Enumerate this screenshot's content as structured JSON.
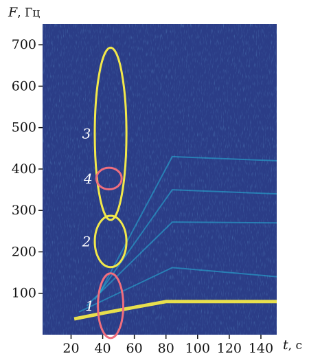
{
  "chart_data": {
    "type": "heatmap",
    "title": "",
    "ylabel": {
      "symbol": "F",
      "unit": "Гц"
    },
    "xlabel": {
      "symbol": "t",
      "unit": "с"
    },
    "xlim": [
      2,
      150
    ],
    "ylim": [
      0,
      750
    ],
    "x_ticks": [
      20,
      40,
      60,
      80,
      100,
      120,
      140
    ],
    "y_ticks": [
      100,
      200,
      300,
      400,
      500,
      600,
      700
    ],
    "colormap": {
      "low": "#2b3d87",
      "mid": "#26b5d8",
      "high": "#f2e84a"
    },
    "regions": [
      {
        "label": "1",
        "color": "#ef6e7e",
        "t_center": 45,
        "f_center": 70,
        "t_halfwidth": 8,
        "f_halfheight": 78
      },
      {
        "label": "2",
        "color": "#f2e84a",
        "t_center": 45,
        "f_center": 225,
        "t_halfwidth": 10,
        "f_halfheight": 62
      },
      {
        "label": "3",
        "color": "#f2e84a",
        "t_center": 45,
        "f_center": 485,
        "t_halfwidth": 10,
        "f_halfheight": 208
      },
      {
        "label": "4",
        "color": "#ef6e7e",
        "t_center": 44,
        "f_center": 377,
        "t_halfwidth": 8,
        "f_halfheight": 26
      }
    ],
    "features": [
      {
        "name": "fundamental",
        "points": [
          [
            22,
            38
          ],
          [
            40,
            52
          ],
          [
            60,
            66
          ],
          [
            80,
            80
          ],
          [
            100,
            80
          ],
          [
            150,
            80
          ]
        ]
      },
      {
        "name": "harmonic-2",
        "points": [
          [
            25,
            55
          ],
          [
            84,
            162
          ],
          [
            150,
            140
          ]
        ]
      },
      {
        "name": "harmonic-3",
        "points": [
          [
            30,
            70
          ],
          [
            84,
            272
          ],
          [
            150,
            270
          ]
        ]
      },
      {
        "name": "harmonic-4",
        "points": [
          [
            35,
            85
          ],
          [
            84,
            350
          ],
          [
            150,
            340
          ]
        ]
      },
      {
        "name": "harmonic-5",
        "points": [
          [
            38,
            100
          ],
          [
            84,
            430
          ],
          [
            150,
            420
          ]
        ]
      }
    ]
  }
}
